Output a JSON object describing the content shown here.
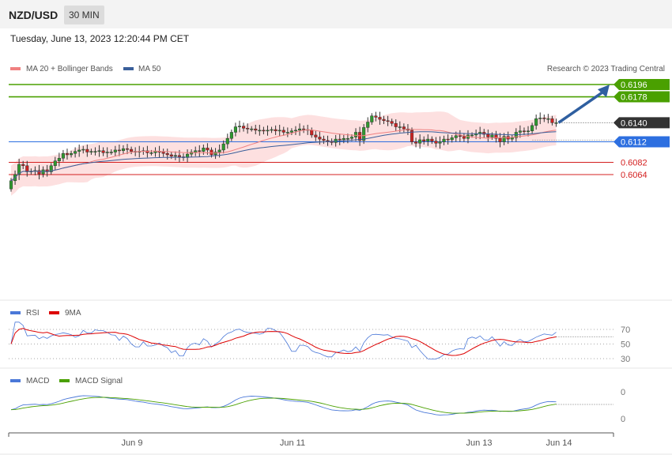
{
  "header": {
    "pair": "NZD/USD",
    "timeframe": "30 MIN"
  },
  "datetime": "Tuesday, June 13, 2023 12:20:44 PM CET",
  "copyright": "Research © 2023 Trading Central",
  "colors": {
    "green": "#4aa000",
    "blue": "#2d6fe0",
    "red": "#d42020",
    "dark": "#333333",
    "ma20": "#f08080",
    "ma50": "#3a5f9a",
    "band": "#fcd6d6",
    "rsi": "#4a78d8",
    "rsi_ma": "#dd0000",
    "macd": "#4a78d8",
    "signal": "#4aa000",
    "arrow": "#2f5fa0"
  },
  "chart_data": [
    {
      "type": "candlestick",
      "title": "NZD/USD",
      "legend": [
        {
          "name": "MA 20 + Bollinger Bands",
          "color": "#f08080"
        },
        {
          "name": "MA 50",
          "color": "#3a5f9a"
        }
      ],
      "x_labels": [
        "Jun 9",
        "Jun 11",
        "Jun 13",
        "Jun 14"
      ],
      "ylim": [
        0.604,
        0.62
      ],
      "levels": [
        {
          "value": 0.6196,
          "label": "0.6196",
          "color": "#4aa000",
          "kind": "resistance"
        },
        {
          "value": 0.6178,
          "label": "0.6178",
          "color": "#4aa000",
          "kind": "resistance"
        },
        {
          "value": 0.614,
          "label": "0.6140",
          "color": "#333333",
          "kind": "last"
        },
        {
          "value": 0.6112,
          "label": "0.6112",
          "color": "#2d6fe0",
          "kind": "pivot"
        },
        {
          "value": 0.6082,
          "label": "0.6082",
          "color": "#d42020",
          "kind": "support"
        },
        {
          "value": 0.6064,
          "label": "0.6064",
          "color": "#d42020",
          "kind": "support"
        }
      ],
      "close": [
        0.6055,
        0.6064,
        0.6079,
        0.6077,
        0.6068,
        0.6069,
        0.607,
        0.6065,
        0.6071,
        0.6068,
        0.6077,
        0.6084,
        0.6088,
        0.6095,
        0.6093,
        0.6095,
        0.6098,
        0.61,
        0.6101,
        0.6097,
        0.6098,
        0.6098,
        0.6099,
        0.6096,
        0.6097,
        0.6097,
        0.61,
        0.6099,
        0.6102,
        0.6101,
        0.6098,
        0.6097,
        0.6098,
        0.6099,
        0.6096,
        0.6096,
        0.6098,
        0.6097,
        0.6095,
        0.6093,
        0.6091,
        0.6092,
        0.609,
        0.6089,
        0.6094,
        0.6097,
        0.6099,
        0.6098,
        0.6103,
        0.61,
        0.6093,
        0.6097,
        0.61,
        0.6109,
        0.6117,
        0.6126,
        0.6134,
        0.6135,
        0.6132,
        0.6131,
        0.6131,
        0.6129,
        0.6129,
        0.6128,
        0.6129,
        0.613,
        0.6128,
        0.6129,
        0.6126,
        0.6126,
        0.6128,
        0.6129,
        0.6131,
        0.613,
        0.6129,
        0.6122,
        0.6119,
        0.6116,
        0.6114,
        0.6113,
        0.6111,
        0.6116,
        0.6115,
        0.6117,
        0.6117,
        0.6119,
        0.6126,
        0.6114,
        0.6133,
        0.6141,
        0.615,
        0.6148,
        0.6145,
        0.6143,
        0.6142,
        0.6139,
        0.6134,
        0.6134,
        0.6131,
        0.6129,
        0.6112,
        0.611,
        0.6115,
        0.6113,
        0.6116,
        0.6113,
        0.611,
        0.6112,
        0.6116,
        0.6115,
        0.6118,
        0.6121,
        0.612,
        0.6117,
        0.6122,
        0.6122,
        0.6124,
        0.6126,
        0.6123,
        0.6119,
        0.6122,
        0.6117,
        0.6112,
        0.612,
        0.6116,
        0.6118,
        0.6126,
        0.6128,
        0.6127,
        0.6128,
        0.6136,
        0.6146,
        0.6147,
        0.6146,
        0.6146,
        0.614,
        0.614
      ],
      "annotation": {
        "type": "arrow",
        "from_bar": 136,
        "from_value": 0.614,
        "to_value": 0.619
      }
    },
    {
      "type": "line",
      "title": "RSI",
      "legend": [
        {
          "name": "RSI",
          "color": "#4a78d8"
        },
        {
          "name": "9MA",
          "color": "#dd0000"
        }
      ],
      "ticks": [
        70,
        50,
        30
      ],
      "ylim": [
        25,
        80
      ]
    },
    {
      "type": "line",
      "title": "MACD",
      "legend": [
        {
          "name": "MACD",
          "color": "#4a78d8"
        },
        {
          "name": "MACD Signal",
          "color": "#4aa000"
        }
      ],
      "ticks": [
        "0",
        "0"
      ],
      "ylim": [
        -0.0012,
        0.0016
      ]
    }
  ]
}
